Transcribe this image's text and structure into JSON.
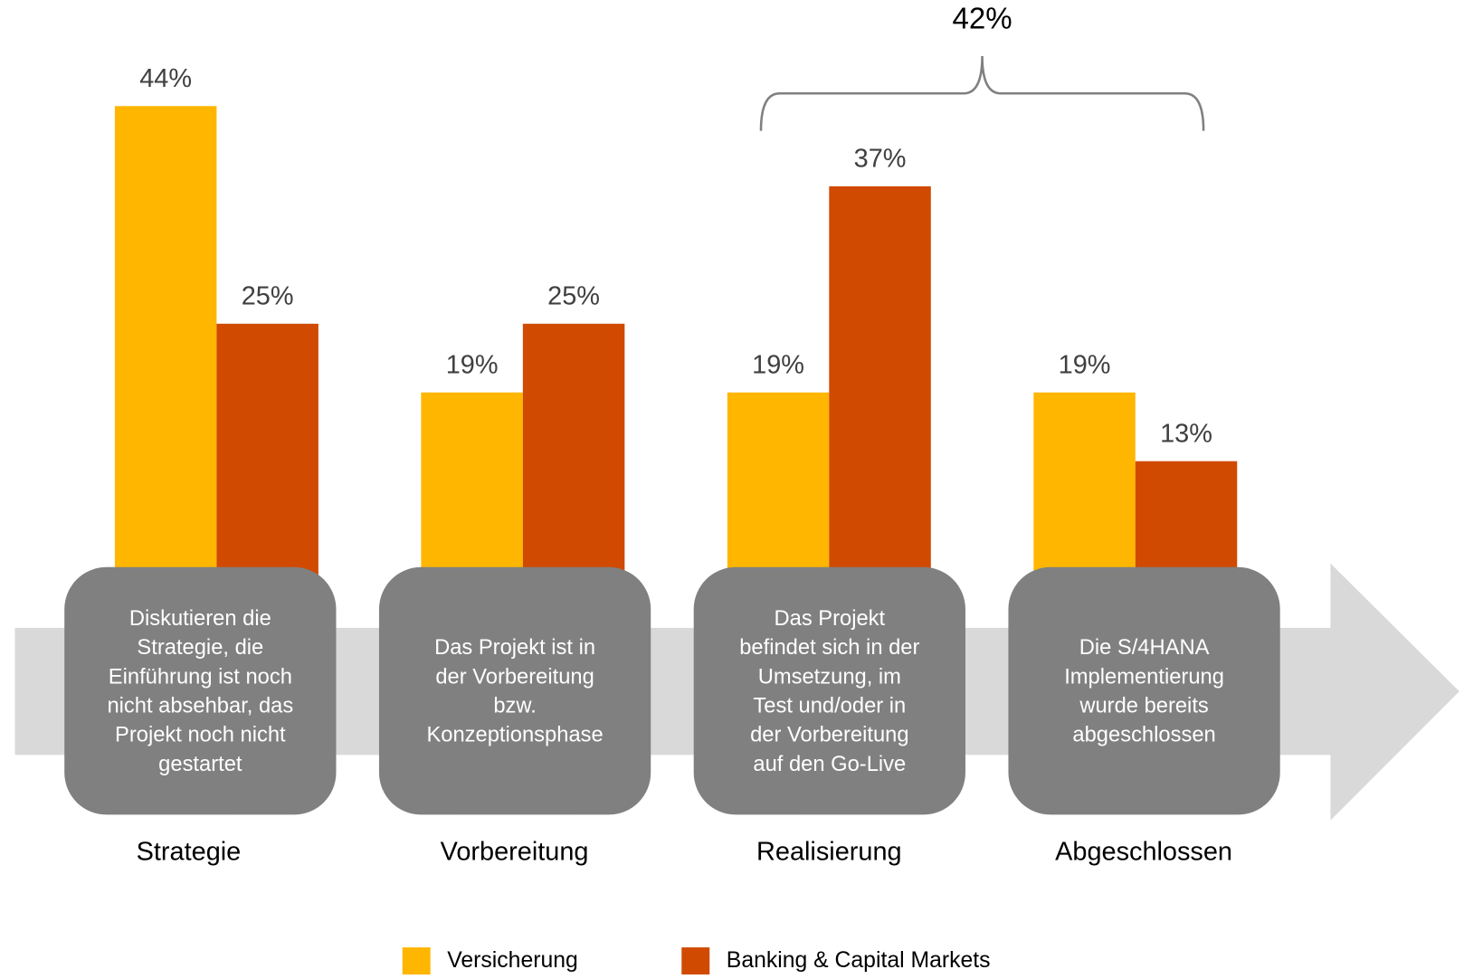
{
  "chart_data": {
    "type": "bar",
    "categories": [
      "Strategie",
      "Vorbereitung",
      "Realisierung",
      "Abgeschlossen"
    ],
    "descriptions": [
      [
        "Diskutieren die",
        "Strategie, die",
        "Einführung ist noch",
        "nicht absehbar, das",
        "Projekt noch nicht",
        "gestartet"
      ],
      [
        "Das Projekt ist in",
        "der Vorbereitung",
        "bzw.",
        "Konzeptionsphase"
      ],
      [
        "Das Projekt",
        "befindet sich in der",
        "Umsetzung, im",
        "Test und/oder in",
        "der Vorbereitung",
        "auf den Go-Live"
      ],
      [
        "Die S/4HANA",
        "Implementierung",
        "wurde bereits",
        "abgeschlossen"
      ]
    ],
    "series": [
      {
        "name": "Versicherung",
        "color": "#ffb600",
        "values": [
          44,
          19,
          19,
          19
        ],
        "value_labels": [
          "44%",
          "19%",
          "19%",
          "19%"
        ]
      },
      {
        "name": "Banking & Capital Markets",
        "color": "#d04a02",
        "values": [
          25,
          25,
          37,
          13
        ],
        "value_labels": [
          "25%",
          "25%",
          "37%",
          "13%"
        ]
      }
    ],
    "annotation": "42%"
  }
}
